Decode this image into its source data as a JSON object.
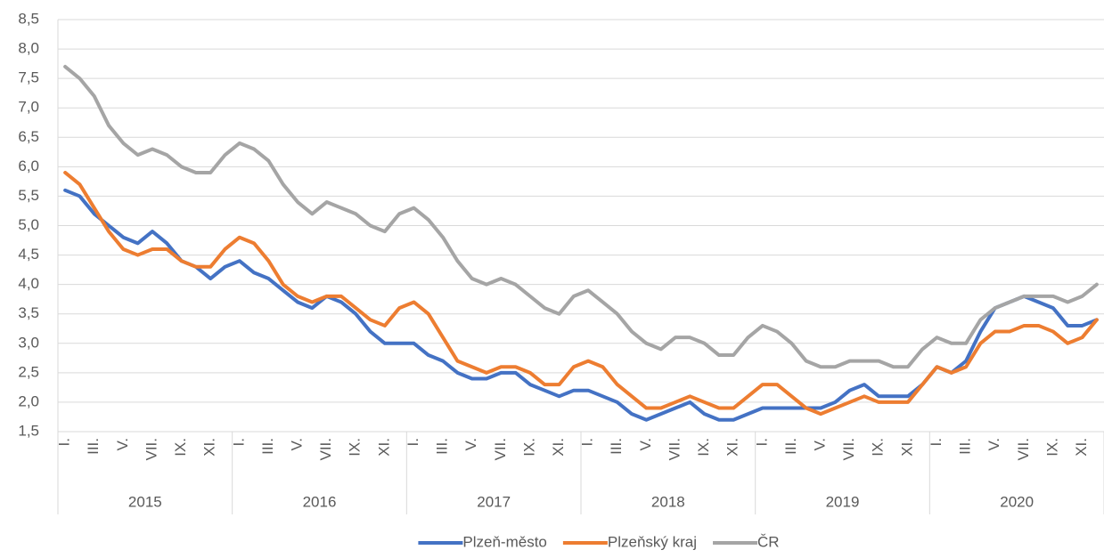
{
  "chart_data": {
    "type": "line",
    "categories": [
      "I.",
      null,
      "III.",
      null,
      "V.",
      null,
      "VII.",
      null,
      "IX.",
      null,
      "XI.",
      null,
      "I.",
      null,
      "III.",
      null,
      "V.",
      null,
      "VII.",
      null,
      "IX.",
      null,
      "XI.",
      null,
      "I.",
      null,
      "III.",
      null,
      "V.",
      null,
      "VII.",
      null,
      "IX.",
      null,
      "XI.",
      null,
      "I.",
      null,
      "III.",
      null,
      "V.",
      null,
      "VII.",
      null,
      "IX.",
      null,
      "XI.",
      null,
      "I.",
      null,
      "III.",
      null,
      "V.",
      null,
      "VII.",
      null,
      "IX.",
      null,
      "XI.",
      null,
      "I.",
      null,
      "III.",
      null,
      "V.",
      null,
      "VII.",
      null,
      "IX.",
      null,
      "XI.",
      null
    ],
    "year_groups": [
      "2015",
      "2016",
      "2017",
      "2018",
      "2019",
      "2020"
    ],
    "series": [
      {
        "name": "Plzeň-město",
        "color": "#4472c4",
        "values": [
          5.6,
          5.5,
          5.2,
          5.0,
          4.8,
          4.7,
          4.9,
          4.7,
          4.4,
          4.3,
          4.1,
          4.3,
          4.4,
          4.2,
          4.1,
          3.9,
          3.7,
          3.6,
          3.8,
          3.7,
          3.5,
          3.2,
          3.0,
          3.0,
          3.0,
          2.8,
          2.7,
          2.5,
          2.4,
          2.4,
          2.5,
          2.5,
          2.3,
          2.2,
          2.1,
          2.2,
          2.2,
          2.1,
          2.0,
          1.8,
          1.7,
          1.8,
          1.9,
          2.0,
          1.8,
          1.7,
          1.7,
          1.8,
          1.9,
          1.9,
          1.9,
          1.9,
          1.9,
          2.0,
          2.2,
          2.3,
          2.1,
          2.1,
          2.1,
          2.3,
          2.6,
          2.5,
          2.7,
          3.2,
          3.6,
          3.7,
          3.8,
          3.7,
          3.6,
          3.3,
          3.3,
          3.4
        ]
      },
      {
        "name": "Plzeňský kraj",
        "color": "#ed7d31",
        "values": [
          5.9,
          5.7,
          5.3,
          4.9,
          4.6,
          4.5,
          4.6,
          4.6,
          4.4,
          4.3,
          4.3,
          4.6,
          4.8,
          4.7,
          4.4,
          4.0,
          3.8,
          3.7,
          3.8,
          3.8,
          3.6,
          3.4,
          3.3,
          3.6,
          3.7,
          3.5,
          3.1,
          2.7,
          2.6,
          2.5,
          2.6,
          2.6,
          2.5,
          2.3,
          2.3,
          2.6,
          2.7,
          2.6,
          2.3,
          2.1,
          1.9,
          1.9,
          2.0,
          2.1,
          2.0,
          1.9,
          1.9,
          2.1,
          2.3,
          2.3,
          2.1,
          1.9,
          1.8,
          1.9,
          2.0,
          2.1,
          2.0,
          2.0,
          2.0,
          2.3,
          2.6,
          2.5,
          2.6,
          3.0,
          3.2,
          3.2,
          3.3,
          3.3,
          3.2,
          3.0,
          3.1,
          3.4
        ]
      },
      {
        "name": "ČR",
        "color": "#a5a5a5",
        "values": [
          7.7,
          7.5,
          7.2,
          6.7,
          6.4,
          6.2,
          6.3,
          6.2,
          6.0,
          5.9,
          5.9,
          6.2,
          6.4,
          6.3,
          6.1,
          5.7,
          5.4,
          5.2,
          5.4,
          5.3,
          5.2,
          5.0,
          4.9,
          5.2,
          5.3,
          5.1,
          4.8,
          4.4,
          4.1,
          4.0,
          4.1,
          4.0,
          3.8,
          3.6,
          3.5,
          3.8,
          3.9,
          3.7,
          3.5,
          3.2,
          3.0,
          2.9,
          3.1,
          3.1,
          3.0,
          2.8,
          2.8,
          3.1,
          3.3,
          3.2,
          3.0,
          2.7,
          2.6,
          2.6,
          2.7,
          2.7,
          2.7,
          2.6,
          2.6,
          2.9,
          3.1,
          3.0,
          3.0,
          3.4,
          3.6,
          3.7,
          3.8,
          3.8,
          3.8,
          3.7,
          3.8,
          4.0
        ]
      }
    ],
    "ylim": [
      1.5,
      8.5
    ],
    "yticks": [
      {
        "value": 1.5,
        "label": "1,5"
      },
      {
        "value": 2.0,
        "label": "2,0"
      },
      {
        "value": 2.5,
        "label": "2,5"
      },
      {
        "value": 3.0,
        "label": "3,0"
      },
      {
        "value": 3.5,
        "label": "3,5"
      },
      {
        "value": 4.0,
        "label": "4,0"
      },
      {
        "value": 4.5,
        "label": "4,5"
      },
      {
        "value": 5.0,
        "label": "5,0"
      },
      {
        "value": 5.5,
        "label": "5,5"
      },
      {
        "value": 6.0,
        "label": "6,0"
      },
      {
        "value": 6.5,
        "label": "6,5"
      },
      {
        "value": 7.0,
        "label": "7,0"
      },
      {
        "value": 7.5,
        "label": "7,5"
      },
      {
        "value": 8.0,
        "label": "8,0"
      },
      {
        "value": 8.5,
        "label": "8,5"
      }
    ],
    "grid": true,
    "legend": "bottom"
  }
}
